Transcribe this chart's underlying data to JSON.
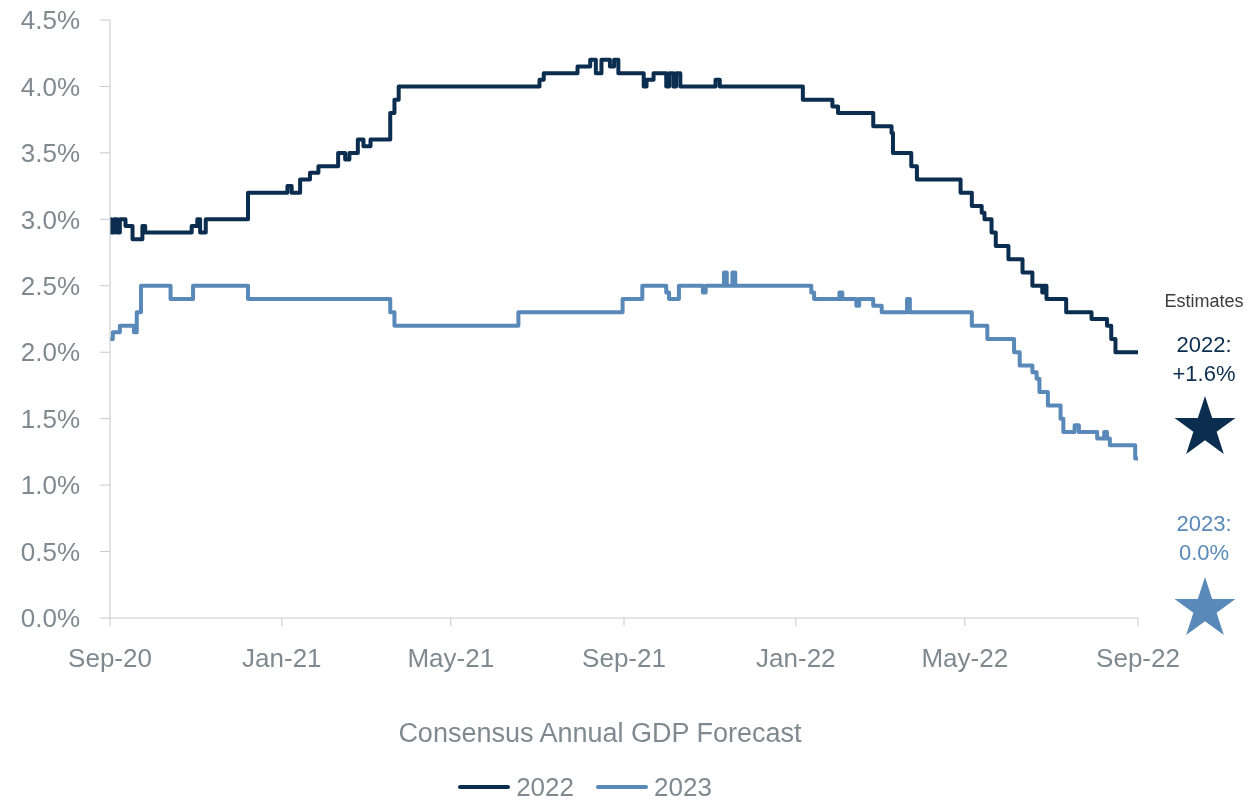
{
  "chart_data": {
    "type": "step",
    "xlabel": "Consensus Annual GDP Forecast",
    "xlim": [
      "2020-09-01",
      "2022-09-01"
    ],
    "xticks": [
      {
        "value": "2020-09-01",
        "label": "Sep-20"
      },
      {
        "value": "2021-01-01",
        "label": "Jan-21"
      },
      {
        "value": "2021-05-01",
        "label": "May-21"
      },
      {
        "value": "2021-09-01",
        "label": "Sep-21"
      },
      {
        "value": "2022-01-01",
        "label": "Jan-22"
      },
      {
        "value": "2022-05-01",
        "label": "May-22"
      },
      {
        "value": "2022-09-01",
        "label": "Sep-22"
      }
    ],
    "ylim": [
      0,
      4.5
    ],
    "yticks": [
      {
        "value": 0,
        "label": "0.0%"
      },
      {
        "value": 0.5,
        "label": "0.5%"
      },
      {
        "value": 1,
        "label": "1.0%"
      },
      {
        "value": 1.5,
        "label": "1.5%"
      },
      {
        "value": 2,
        "label": "2.0%"
      },
      {
        "value": 2.5,
        "label": "2.5%"
      },
      {
        "value": 3,
        "label": "3.0%"
      },
      {
        "value": 3.5,
        "label": "3.5%"
      },
      {
        "value": 4,
        "label": "4.0%"
      },
      {
        "value": 4.5,
        "label": "4.5%"
      }
    ],
    "legend": "bottom",
    "annotations": [
      "Estimates",
      "2022: +1.6%",
      "2023: 0.0%"
    ],
    "series": [
      {
        "name": "2022",
        "color": "#0b2d4f",
        "x": [
          "2020-09-01",
          "2020-09-02",
          "2020-09-04",
          "2020-09-06",
          "2020-09-08",
          "2020-09-12",
          "2020-09-17",
          "2020-09-24",
          "2020-09-26",
          "2020-10-29",
          "2020-11-02",
          "2020-11-04",
          "2020-11-08",
          "2020-12-08",
          "2021-01-05",
          "2021-01-08",
          "2021-01-14",
          "2021-01-21",
          "2021-01-27",
          "2021-02-10",
          "2021-02-15",
          "2021-02-18",
          "2021-02-24",
          "2021-02-28",
          "2021-03-05",
          "2021-03-19",
          "2021-03-22",
          "2021-03-25",
          "2021-07-03",
          "2021-07-06",
          "2021-07-30",
          "2021-08-08",
          "2021-08-12",
          "2021-08-16",
          "2021-08-22",
          "2021-08-25",
          "2021-08-28",
          "2021-09-15",
          "2021-09-17",
          "2021-09-22",
          "2021-10-01",
          "2021-10-03",
          "2021-10-06",
          "2021-10-08",
          "2021-10-11",
          "2021-11-05",
          "2021-11-08",
          "2022-01-06",
          "2022-01-27",
          "2022-01-31",
          "2022-02-25",
          "2022-03-10",
          "2022-03-11",
          "2022-03-24",
          "2022-03-28",
          "2022-04-28",
          "2022-05-06",
          "2022-05-13",
          "2022-05-15",
          "2022-05-20",
          "2022-05-23",
          "2022-06-01",
          "2022-06-11",
          "2022-06-18",
          "2022-06-25",
          "2022-06-26",
          "2022-06-28",
          "2022-07-12",
          "2022-07-30",
          "2022-08-10",
          "2022-08-13",
          "2022-08-16",
          "2022-09-01"
        ],
        "values": [
          3.0,
          2.9,
          3.0,
          2.9,
          3.0,
          2.95,
          2.85,
          2.95,
          2.9,
          2.95,
          3.0,
          2.9,
          3.0,
          3.2,
          3.25,
          3.2,
          3.3,
          3.35,
          3.4,
          3.5,
          3.45,
          3.5,
          3.6,
          3.55,
          3.6,
          3.8,
          3.9,
          4.0,
          4.05,
          4.1,
          4.15,
          4.2,
          4.1,
          4.2,
          4.15,
          4.2,
          4.1,
          4.0,
          4.05,
          4.1,
          4.0,
          4.1,
          4.0,
          4.1,
          4.0,
          4.05,
          4.0,
          3.9,
          3.85,
          3.8,
          3.7,
          3.65,
          3.5,
          3.4,
          3.3,
          3.2,
          3.1,
          3.05,
          3.0,
          2.9,
          2.8,
          2.7,
          2.6,
          2.5,
          2.45,
          2.5,
          2.4,
          2.3,
          2.25,
          2.2,
          2.1,
          2.0,
          2.0
        ]
      },
      {
        "name": "2023",
        "color": "#5889b9",
        "x": [
          "2020-09-01",
          "2020-09-03",
          "2020-09-08",
          "2020-09-18",
          "2020-09-20",
          "2020-09-23",
          "2020-10-14",
          "2020-10-30",
          "2020-12-08",
          "2021-03-19",
          "2021-03-22",
          "2021-06-18",
          "2021-08-31",
          "2021-09-14",
          "2021-10-01",
          "2021-10-03",
          "2021-10-10",
          "2021-10-27",
          "2021-10-29",
          "2021-11-11",
          "2021-11-13",
          "2021-11-17",
          "2021-11-19",
          "2022-01-12",
          "2022-01-14",
          "2022-02-01",
          "2022-02-03",
          "2022-02-13",
          "2022-02-15",
          "2022-02-25",
          "2022-03-03",
          "2022-03-21",
          "2022-03-23",
          "2022-05-06",
          "2022-05-17",
          "2022-06-05",
          "2022-06-09",
          "2022-06-18",
          "2022-06-21",
          "2022-06-23",
          "2022-06-29",
          "2022-07-08",
          "2022-07-10",
          "2022-07-18",
          "2022-07-21",
          "2022-08-03",
          "2022-08-08",
          "2022-08-10",
          "2022-08-12",
          "2022-08-30",
          "2022-09-01"
        ],
        "values": [
          2.1,
          2.15,
          2.2,
          2.15,
          2.3,
          2.5,
          2.4,
          2.5,
          2.4,
          2.3,
          2.2,
          2.3,
          2.4,
          2.5,
          2.45,
          2.4,
          2.5,
          2.45,
          2.5,
          2.6,
          2.5,
          2.6,
          2.5,
          2.45,
          2.4,
          2.45,
          2.4,
          2.35,
          2.4,
          2.35,
          2.3,
          2.4,
          2.3,
          2.2,
          2.1,
          2.0,
          1.9,
          1.85,
          1.8,
          1.7,
          1.6,
          1.5,
          1.4,
          1.45,
          1.4,
          1.35,
          1.4,
          1.35,
          1.3,
          1.2,
          1.2
        ]
      }
    ]
  }
}
